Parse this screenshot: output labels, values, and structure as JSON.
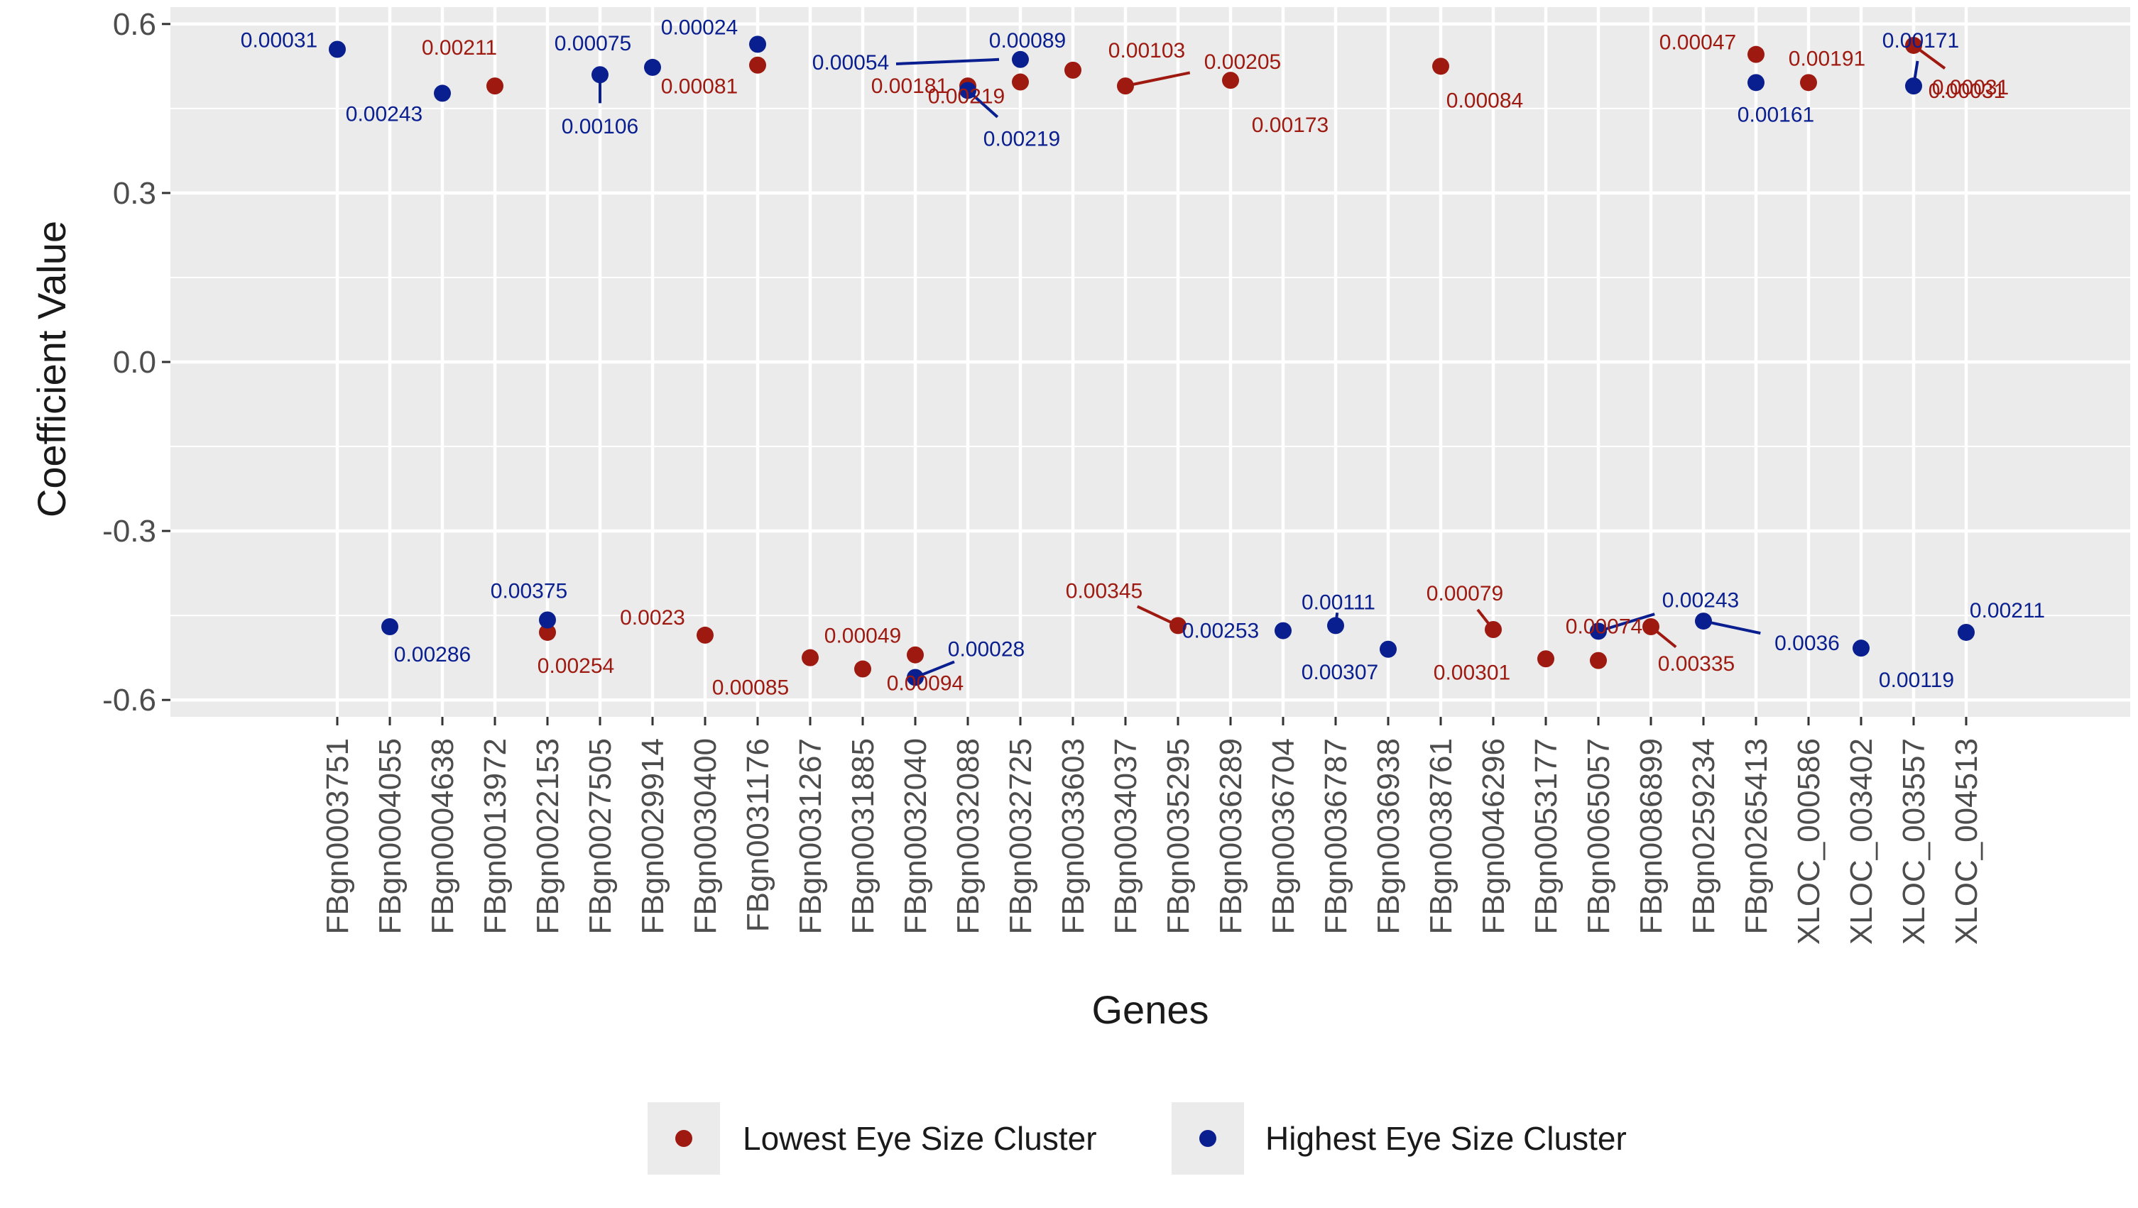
{
  "chart_data": {
    "type": "scatter",
    "title": "",
    "xlabel": "Genes",
    "ylabel": "Coefficient Value",
    "ylim": [
      -0.63,
      0.63
    ],
    "yticks": [
      0.6,
      0.3,
      0.0,
      -0.3,
      -0.6
    ],
    "ytick_labels": [
      "0.6",
      "0.3",
      "0.0",
      "-0.3",
      "-0.6"
    ],
    "categories": [
      "FBgn0003751",
      "FBgn0004055",
      "FBgn0004638",
      "FBgn0013972",
      "FBgn0022153",
      "FBgn0027505",
      "FBgn0029914",
      "FBgn0030400",
      "FBgn0031176",
      "FBgn0031267",
      "FBgn0031885",
      "FBgn0032040",
      "FBgn0032088",
      "FBgn0032725",
      "FBgn0033603",
      "FBgn0034037",
      "FBgn0035295",
      "FBgn0036289",
      "FBgn0036704",
      "FBgn0036787",
      "FBgn0036938",
      "FBgn0038761",
      "FBgn0046296",
      "FBgn0053177",
      "FBgn0065057",
      "FBgn0086899",
      "FBgn0259234",
      "FBgn0265413",
      "XLOC_000586",
      "XLOC_003402",
      "XLOC_003557",
      "XLOC_004513"
    ],
    "legend_position": "bottom",
    "colors": {
      "low": "#9e1a10",
      "high": "#0a1f8f",
      "panel": "#ebebeb",
      "grid": "#ffffff"
    },
    "series": [
      {
        "name": "Lowest Eye Size Cluster",
        "key": "low",
        "points": [
          {
            "gene": "FBgn0013972",
            "y": 0.49,
            "label": "0.00211"
          },
          {
            "gene": "FBgn0022153",
            "y": -0.48,
            "label": "0.00254"
          },
          {
            "gene": "FBgn0030400",
            "y": -0.485,
            "label": "0.0023"
          },
          {
            "gene": "FBgn0031176",
            "y": 0.527,
            "label": "0.00081"
          },
          {
            "gene": "FBgn0031267",
            "y": -0.525,
            "label": "0.00085"
          },
          {
            "gene": "FBgn0031885",
            "y": -0.545,
            "label": "0.00049"
          },
          {
            "gene": "FBgn0032040",
            "y": -0.52,
            "label": "0.00094"
          },
          {
            "gene": "FBgn0032088",
            "y": 0.49,
            "label": "0.00181"
          },
          {
            "gene": "FBgn0032725",
            "y": 0.497,
            "label": "0.00219"
          },
          {
            "gene": "FBgn0033603",
            "y": 0.518,
            "label": "0.00103"
          },
          {
            "gene": "FBgn0034037",
            "y": 0.49,
            "label": "0.00205"
          },
          {
            "gene": "FBgn0035295",
            "y": -0.468,
            "label": "0.00345"
          },
          {
            "gene": "FBgn0036289",
            "y": 0.5,
            "label": "0.00173"
          },
          {
            "gene": "FBgn0038761",
            "y": 0.525,
            "label": "0.00084"
          },
          {
            "gene": "FBgn0046296",
            "y": -0.475,
            "label": "0.00079"
          },
          {
            "gene": "FBgn0053177",
            "y": -0.527,
            "label": "0.00301"
          },
          {
            "gene": "FBgn0065057",
            "y": -0.53,
            "label": "0.00074"
          },
          {
            "gene": "FBgn0086899",
            "y": -0.47,
            "label": "0.00335"
          },
          {
            "gene": "FBgn0265413",
            "y": 0.546,
            "label": "0.00047"
          },
          {
            "gene": "XLOC_000586",
            "y": 0.496,
            "label": "0.00191"
          },
          {
            "gene": "XLOC_003557",
            "y": 0.562,
            "label": "0.00031"
          }
        ]
      },
      {
        "name": "Highest Eye Size Cluster",
        "key": "high",
        "points": [
          {
            "gene": "FBgn0003751",
            "y": 0.555,
            "label": "0.00031"
          },
          {
            "gene": "FBgn0004055",
            "y": -0.47,
            "label": "0.00286"
          },
          {
            "gene": "FBgn0004638",
            "y": 0.477,
            "label": "0.00243"
          },
          {
            "gene": "FBgn0022153",
            "y": -0.458,
            "label": "0.00375"
          },
          {
            "gene": "FBgn0027505",
            "y": 0.51,
            "label": "0.00106"
          },
          {
            "gene": "FBgn0029914",
            "y": 0.523,
            "label": "0.00075"
          },
          {
            "gene": "FBgn0031176",
            "y": 0.564,
            "label": "0.00024"
          },
          {
            "gene": "FBgn0032040",
            "y": -0.56,
            "label": "0.00028"
          },
          {
            "gene": "FBgn0032088",
            "y": 0.482,
            "label": "0.00219"
          },
          {
            "gene": "FBgn0032725",
            "y": 0.537,
            "label": "0.00089"
          },
          {
            "gene": "FBgn0036704",
            "y": -0.477,
            "label": "0.00253"
          },
          {
            "gene": "FBgn0036787",
            "y": -0.468,
            "label": "0.00111"
          },
          {
            "gene": "FBgn0036938",
            "y": -0.51,
            "label": "0.00307"
          },
          {
            "gene": "FBgn0065057",
            "y": -0.478,
            "label": "0.00243"
          },
          {
            "gene": "FBgn0259234",
            "y": -0.46,
            "label": "0.0036"
          },
          {
            "gene": "FBgn0265413",
            "y": 0.496,
            "label": "0.00161"
          },
          {
            "gene": "XLOC_003402",
            "y": -0.508,
            "label": "0.00119"
          },
          {
            "gene": "XLOC_003557",
            "y": 0.49,
            "label": "0.00171"
          },
          {
            "gene": "XLOC_004513",
            "y": -0.48,
            "label": "0.00211"
          }
        ]
      }
    ],
    "annotations": [
      {
        "text": "0.00031",
        "color": "low"
      },
      {
        "text": "0.00054",
        "color": "high"
      }
    ]
  }
}
